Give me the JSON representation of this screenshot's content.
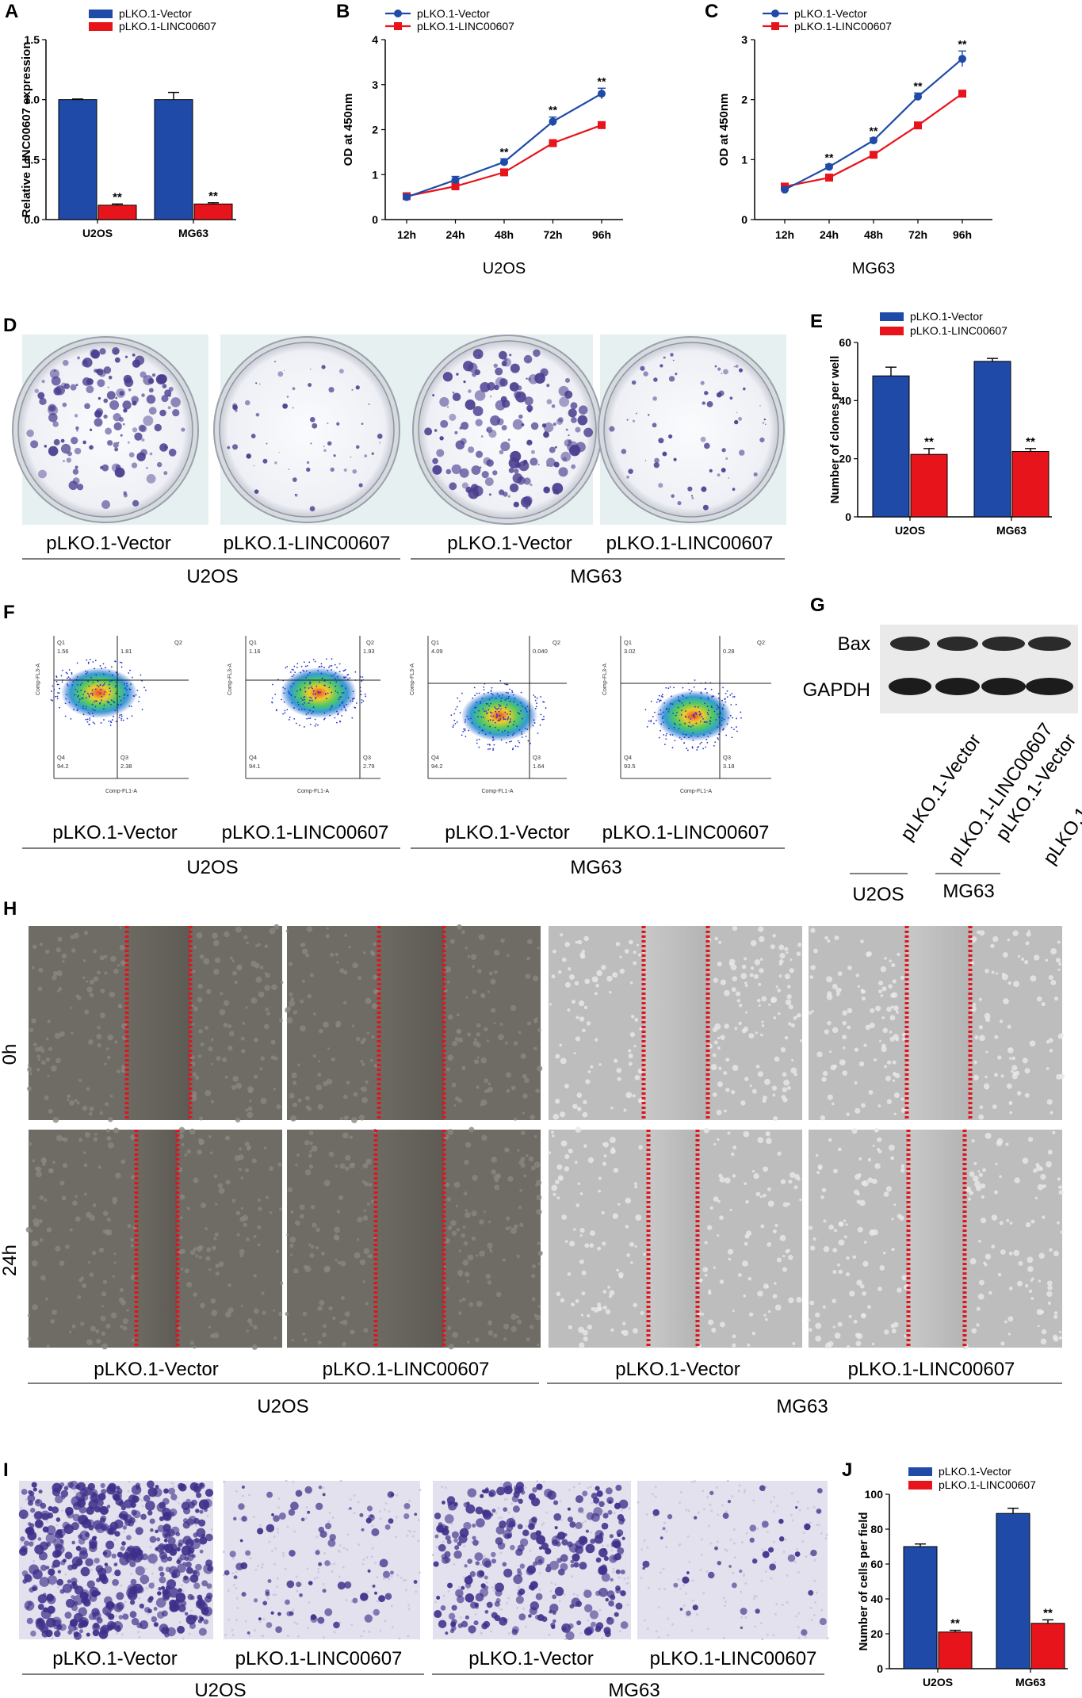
{
  "panels": {
    "A": "A",
    "B": "B",
    "C": "C",
    "D": "D",
    "E": "E",
    "F": "F",
    "G": "G",
    "H": "H",
    "I": "I",
    "J": "J"
  },
  "groups": {
    "vector": "pLKO.1-Vector",
    "linc": "pLKO.1-LINC00607"
  },
  "cells": {
    "u2os": "U2OS",
    "mg63": "MG63"
  },
  "sig": "**",
  "times": {
    "t0": "0h",
    "t24": "24h"
  },
  "blot": {
    "bax": "Bax",
    "gapdh": "GAPDH"
  },
  "flow": {
    "xlabel": "Comp-FL1-A",
    "ylabel": "Comp-FL3-A",
    "quadrant_names": [
      "Q1",
      "Q2",
      "Q3",
      "Q4"
    ],
    "plots": [
      {
        "q1": "1.56",
        "q2": "1.81",
        "q3": "2.38",
        "q4": "94.2"
      },
      {
        "q1": "1.16",
        "q2": "1.93",
        "q3": "2.79",
        "q4": "94.1"
      },
      {
        "q1": "4.09",
        "q2": "0.040",
        "q3": "1.64",
        "q4": "94.2"
      },
      {
        "q1": "3.02",
        "q2": "0.28",
        "q3": "3.18",
        "q4": "93.5"
      }
    ]
  },
  "colors": {
    "vector": "#1f4aa8",
    "linc": "#e8141c"
  },
  "chart_data": [
    {
      "id": "A",
      "type": "bar",
      "categories": [
        "U2OS",
        "MG63"
      ],
      "series": [
        {
          "name": "pLKO.1-Vector",
          "values": [
            1.0,
            1.0
          ],
          "errors": [
            0.005,
            0.06
          ]
        },
        {
          "name": "pLKO.1-LINC00607",
          "values": [
            0.12,
            0.13
          ],
          "errors": [
            0.01,
            0.01
          ]
        }
      ],
      "ylabel": "Relative LINC00607 expression",
      "ylim": [
        0,
        1.5
      ],
      "yticks": [
        "0.0",
        "0.5",
        "1.0",
        "1.5"
      ],
      "yticks_values": [
        0,
        0.5,
        1.0,
        1.5
      ],
      "significance": [
        "**",
        "**"
      ],
      "legend": "top-left"
    },
    {
      "id": "B",
      "type": "line",
      "x": [
        "12h",
        "24h",
        "48h",
        "72h",
        "96h"
      ],
      "series": [
        {
          "name": "pLKO.1-Vector",
          "values": [
            0.5,
            0.88,
            1.28,
            2.18,
            2.8
          ],
          "errors": [
            0.05,
            0.08,
            0.07,
            0.1,
            0.12
          ]
        },
        {
          "name": "pLKO.1-LINC00607",
          "values": [
            0.52,
            0.74,
            1.05,
            1.7,
            2.1
          ],
          "errors": [
            0.03,
            0.04,
            0.05,
            0.04,
            0.04
          ]
        }
      ],
      "ylabel": "OD at 450nm",
      "xlabel": "U2OS",
      "ylim": [
        0,
        4
      ],
      "yticks": [
        "0",
        "1",
        "2",
        "3",
        "4"
      ],
      "significance": [
        "",
        "",
        "**",
        "**",
        "**"
      ],
      "legend": "top-left"
    },
    {
      "id": "C",
      "type": "line",
      "x": [
        "12h",
        "24h",
        "48h",
        "72h",
        "96h"
      ],
      "series": [
        {
          "name": "pLKO.1-Vector",
          "values": [
            0.5,
            0.88,
            1.32,
            2.05,
            2.68
          ],
          "errors": [
            0.04,
            0.04,
            0.04,
            0.06,
            0.13
          ]
        },
        {
          "name": "pLKO.1-LINC00607",
          "values": [
            0.55,
            0.7,
            1.08,
            1.57,
            2.1
          ],
          "errors": [
            0.02,
            0.03,
            0.03,
            0.03,
            0.04
          ]
        }
      ],
      "ylabel": "OD at 450nm",
      "xlabel": "MG63",
      "ylim": [
        0,
        3
      ],
      "yticks": [
        "0",
        "1",
        "2",
        "3"
      ],
      "significance": [
        "",
        "**",
        "**",
        "**",
        "**"
      ],
      "legend": "top-left"
    },
    {
      "id": "E",
      "type": "bar",
      "categories": [
        "U2OS",
        "MG63"
      ],
      "series": [
        {
          "name": "pLKO.1-Vector",
          "values": [
            48.5,
            53.5
          ],
          "errors": [
            3.0,
            1.0
          ]
        },
        {
          "name": "pLKO.1-LINC00607",
          "values": [
            21.5,
            22.5
          ],
          "errors": [
            2.0,
            1.0
          ]
        }
      ],
      "ylabel": "Number of clones per well",
      "ylim": [
        0,
        60
      ],
      "yticks": [
        "0",
        "20",
        "40",
        "60"
      ],
      "yticks_values": [
        0,
        20,
        40,
        60
      ],
      "significance": [
        "**",
        "**"
      ],
      "legend": "top"
    },
    {
      "id": "J",
      "type": "bar",
      "categories": [
        "U2OS",
        "MG63"
      ],
      "series": [
        {
          "name": "pLKO.1-Vector",
          "values": [
            70,
            89
          ],
          "errors": [
            1.5,
            3.0
          ]
        },
        {
          "name": "pLKO.1-LINC00607",
          "values": [
            21,
            26
          ],
          "errors": [
            1.0,
            2.0
          ]
        }
      ],
      "ylabel": "Number of cells per field",
      "ylim": [
        0,
        100
      ],
      "yticks": [
        "0",
        "20",
        "40",
        "60",
        "80",
        "100"
      ],
      "yticks_values": [
        0,
        20,
        40,
        60,
        80,
        100
      ],
      "significance": [
        "**",
        "**"
      ],
      "legend": "top"
    }
  ]
}
